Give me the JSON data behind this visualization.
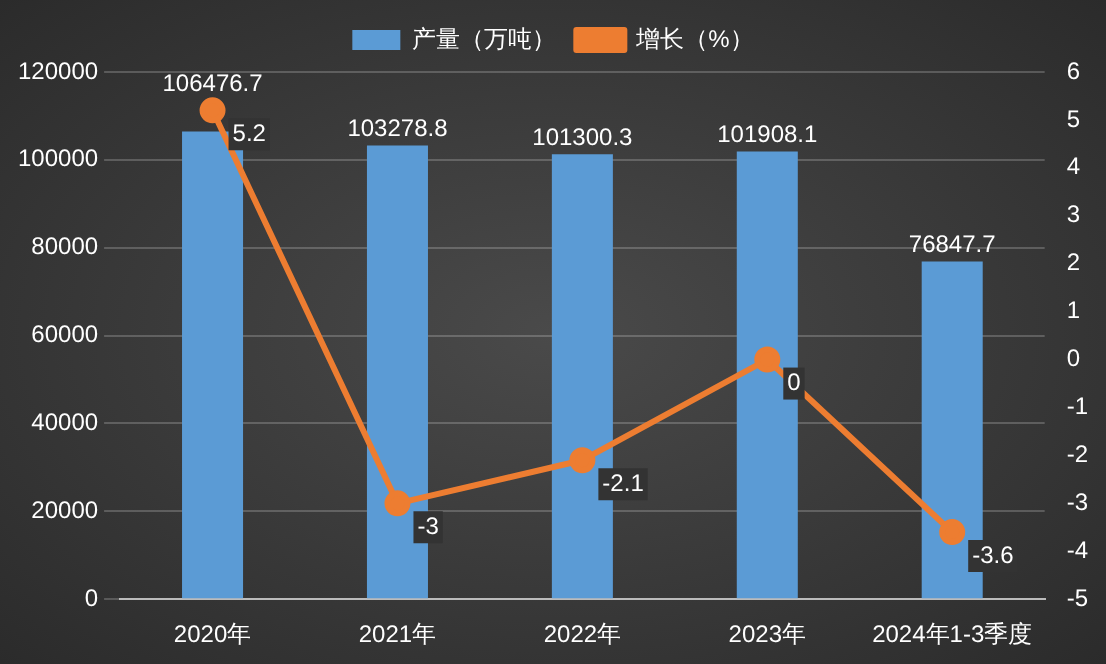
{
  "chart_data": {
    "type": "bar",
    "categories": [
      "2020年",
      "2021年",
      "2022年",
      "2023年",
      "2024年1-3季度"
    ],
    "series": [
      {
        "name": "产量（万吨）",
        "color": "#5b9bd5",
        "values": [
          106476.7,
          103278.8,
          101300.3,
          101908.1,
          76847.7
        ]
      },
      {
        "name": "增长（%）",
        "type": "line",
        "axis": "y2",
        "color": "#ed7d31",
        "values": [
          5.2,
          -3,
          -2.1,
          0,
          -3.6
        ]
      }
    ],
    "ylim": [
      0,
      120000
    ],
    "yticks": [
      0,
      20000,
      40000,
      60000,
      80000,
      100000,
      120000
    ],
    "y2lim": [
      -5,
      6
    ],
    "y2ticks": [
      -5,
      -4,
      -3,
      -2,
      -1,
      0,
      1,
      2,
      3,
      4,
      5,
      6
    ],
    "grid": "y",
    "legend": "top",
    "marker": "circle",
    "data_labels": true
  }
}
